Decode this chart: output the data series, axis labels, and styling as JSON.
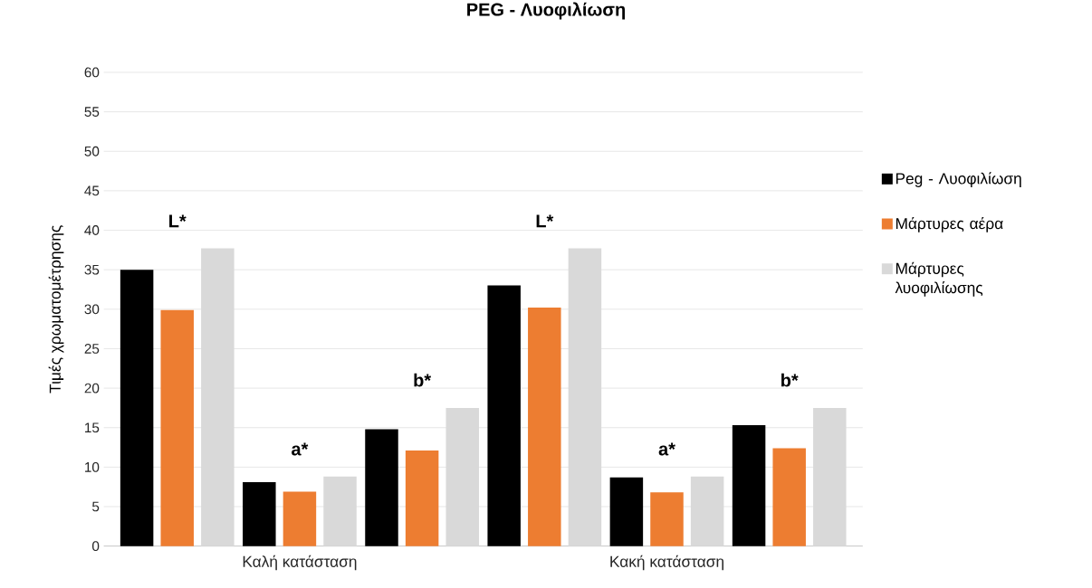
{
  "chart_data": {
    "type": "bar",
    "title": "PEG - Λυοφιλίωση",
    "ylabel": "Τιμές χρωματομέτρησης",
    "categories": [
      null,
      "Καλή κατάσταση",
      null,
      null,
      "Κακή κατάσταση",
      null
    ],
    "series": [
      {
        "name": "Peg - Λυοφιλίωση",
        "color": "#000000",
        "values": [
          35,
          8.1,
          14.8,
          33,
          8.7,
          15.3
        ]
      },
      {
        "name": "Μάρτυρες αέρα",
        "color": "#ed7d31",
        "values": [
          29.9,
          6.9,
          12.1,
          30.2,
          6.8,
          12.4
        ]
      },
      {
        "name": "Μάρτυρες λυοφιλίωσης",
        "color": "#d9d9d9",
        "values": [
          37.7,
          8.8,
          17.5,
          37.7,
          8.8,
          17.5
        ]
      }
    ],
    "annotations": [
      "L*",
      "a*",
      "b*",
      "L*",
      "a*",
      "b*"
    ],
    "ylim": [
      0,
      60
    ],
    "yticks": [
      0,
      5,
      10,
      15,
      20,
      25,
      30,
      35,
      40,
      45,
      50,
      55,
      60
    ],
    "grid": "y",
    "legend": "right"
  }
}
